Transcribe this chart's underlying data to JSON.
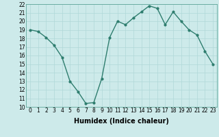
{
  "x": [
    0,
    1,
    2,
    3,
    4,
    5,
    6,
    7,
    8,
    9,
    10,
    11,
    12,
    13,
    14,
    15,
    16,
    17,
    18,
    19,
    20,
    21,
    22,
    23
  ],
  "y": [
    19,
    18.8,
    18.1,
    17.2,
    15.8,
    13.0,
    11.8,
    10.4,
    10.5,
    13.3,
    18.1,
    20.0,
    19.6,
    20.4,
    21.1,
    21.8,
    21.5,
    19.6,
    21.1,
    20.0,
    19.0,
    18.4,
    16.5,
    15.0
  ],
  "line_color": "#2e7d6e",
  "marker": "o",
  "marker_size": 2,
  "bg_color": "#cdeaea",
  "grid_color": "#b0d8d8",
  "xlabel": "Humidex (Indice chaleur)",
  "ylim": [
    10,
    22
  ],
  "xlim_min": -0.5,
  "xlim_max": 23.5,
  "yticks": [
    10,
    11,
    12,
    13,
    14,
    15,
    16,
    17,
    18,
    19,
    20,
    21,
    22
  ],
  "xticks": [
    0,
    1,
    2,
    3,
    4,
    5,
    6,
    7,
    8,
    9,
    10,
    11,
    12,
    13,
    14,
    15,
    16,
    17,
    18,
    19,
    20,
    21,
    22,
    23
  ],
  "tick_fontsize": 5.5,
  "label_fontsize": 7,
  "line_width": 1.0
}
